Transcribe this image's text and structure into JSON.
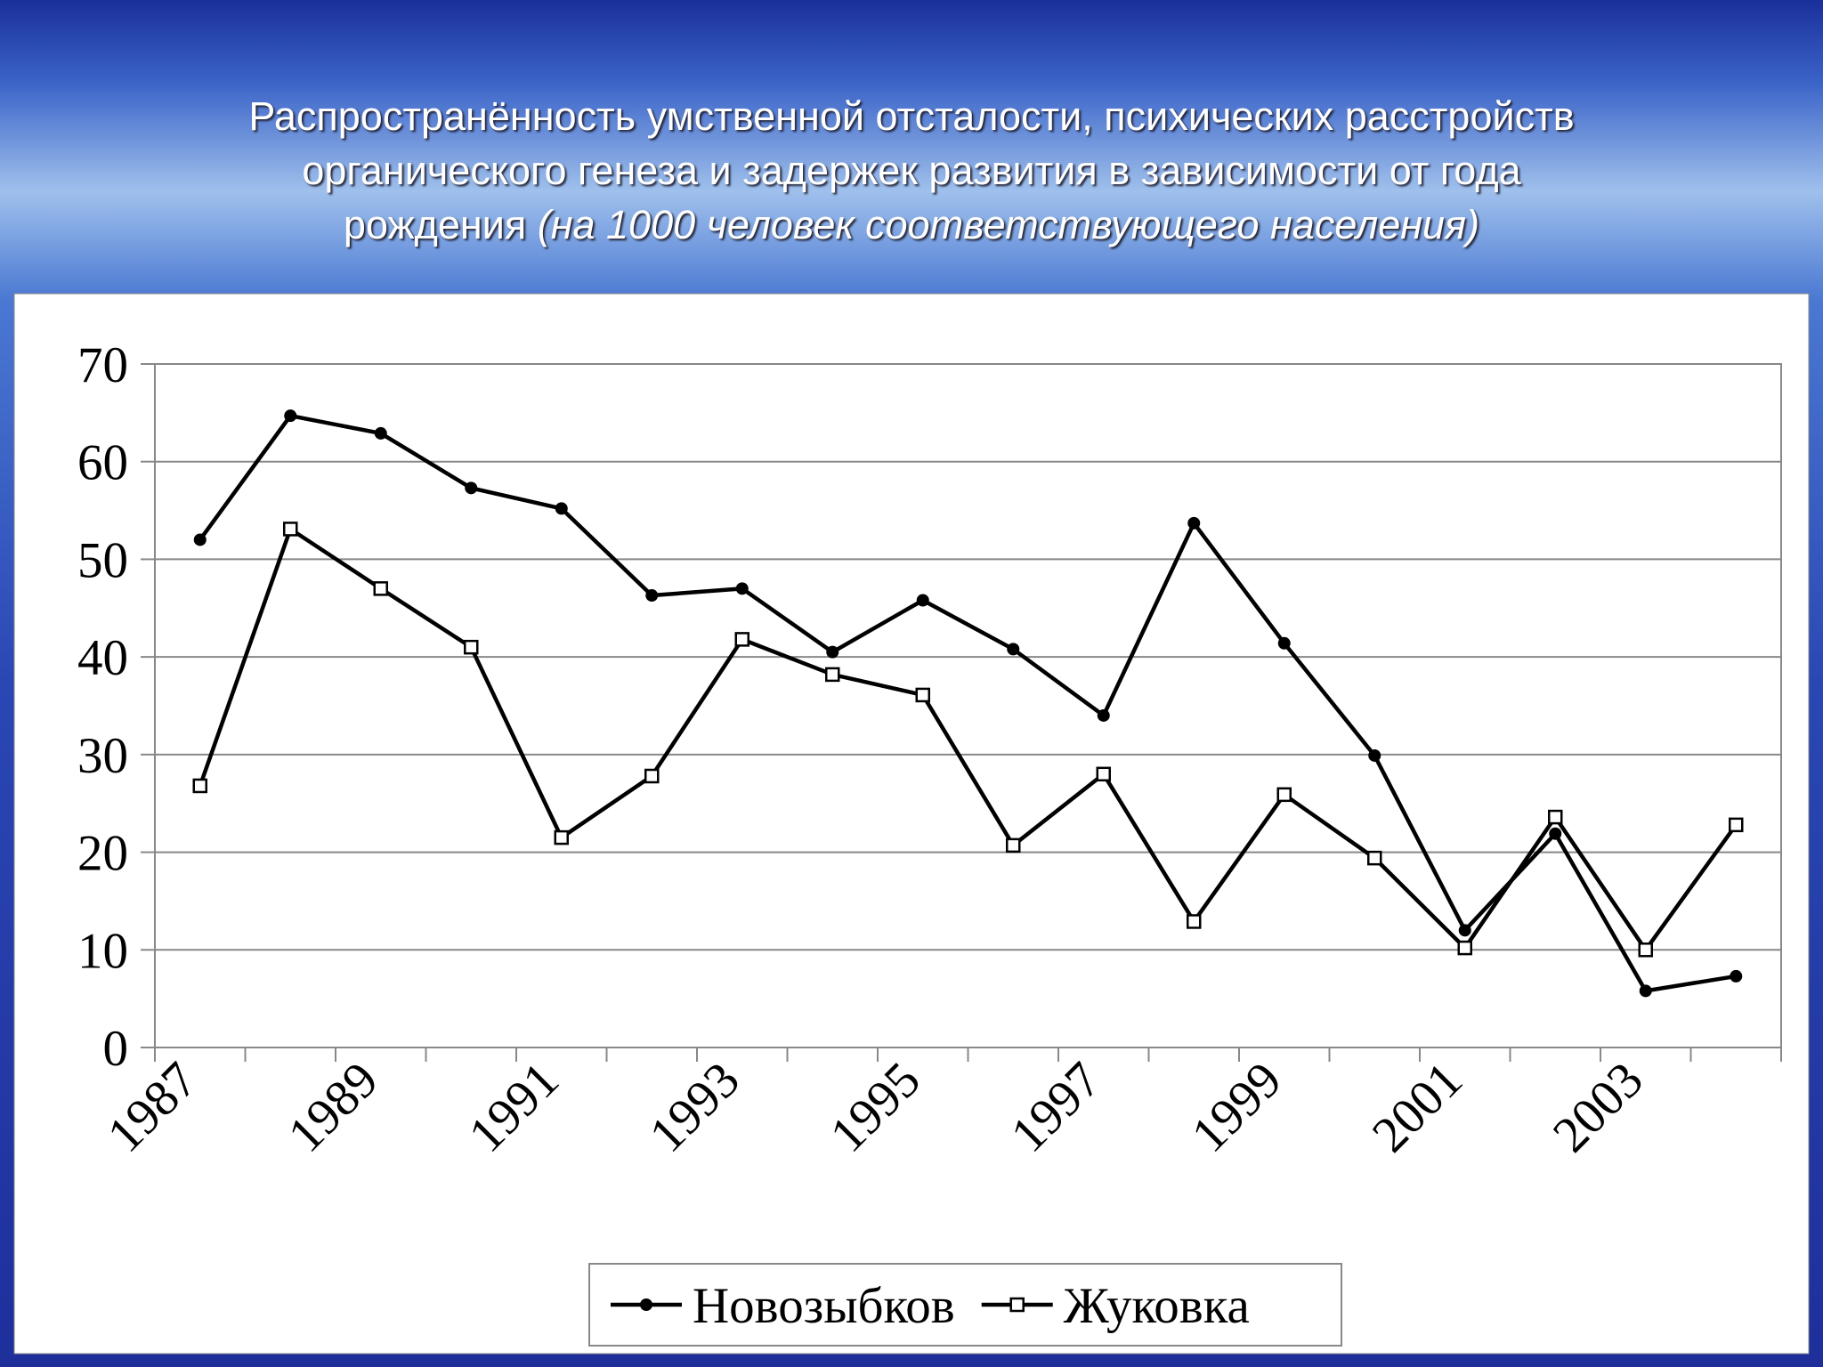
{
  "chart_data": {
    "type": "line",
    "title_lines": [
      "Распространённость умственной отсталости, психических расстройств",
      "органического генеза и задержек развития в зависимости от года",
      "рождения"
    ],
    "title_note": "(на 1000 человек соответствующего населения)",
    "categories": [
      "1987",
      null,
      "1989",
      null,
      "1991",
      null,
      "1993",
      null,
      "1995",
      null,
      "1997",
      null,
      "1999",
      null,
      "2001",
      null,
      "2003",
      null
    ],
    "series": [
      {
        "name": "Новозыбков",
        "color": "#000000",
        "marker": "circle",
        "values": [
          52,
          64.7,
          62.9,
          57.3,
          55.2,
          46.3,
          47,
          40.5,
          45.8,
          40.8,
          34,
          53.7,
          41.4,
          29.9,
          12,
          21.9,
          5.8,
          7.3
        ]
      },
      {
        "name": "Жуковка",
        "color": "#000000",
        "marker": "square",
        "values": [
          26.8,
          53.1,
          47,
          41,
          21.5,
          27.8,
          41.8,
          38.2,
          36.1,
          20.7,
          28,
          12.9,
          25.9,
          19.4,
          10.2,
          23.6,
          10,
          22.8
        ]
      }
    ],
    "ylim": [
      0,
      70
    ],
    "yticks": [
      0,
      10,
      20,
      30,
      40,
      50,
      60,
      70
    ],
    "grid": true,
    "legend": "bottom"
  }
}
